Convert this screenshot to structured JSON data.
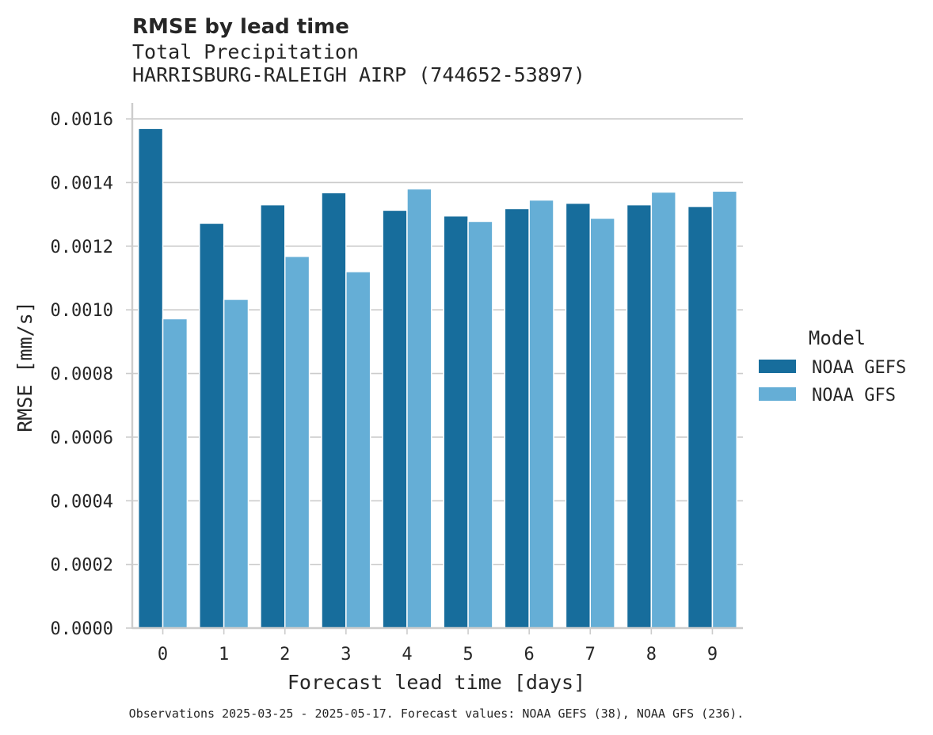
{
  "chart_data": {
    "type": "bar",
    "title": "RMSE by lead time",
    "subtitle_lines": [
      "Total Precipitation",
      "HARRISBURG-RALEIGH AIRP (744652-53897)"
    ],
    "xlabel": "Forecast lead time [days]",
    "ylabel": "RMSE [mm/s]",
    "categories": [
      "0",
      "1",
      "2",
      "3",
      "4",
      "5",
      "6",
      "7",
      "8",
      "9"
    ],
    "ylim": [
      0,
      0.00165
    ],
    "yticks": [
      0.0,
      0.0002,
      0.0004,
      0.0006,
      0.0008,
      0.001,
      0.0012,
      0.0014,
      0.0016
    ],
    "ytick_labels": [
      "0.0000",
      "0.0002",
      "0.0004",
      "0.0006",
      "0.0008",
      "0.0010",
      "0.0012",
      "0.0014",
      "0.0016"
    ],
    "grid": true,
    "legend": {
      "title": "Model",
      "placement": "right-outside"
    },
    "series": [
      {
        "name": "NOAA GEFS",
        "color": "#176d9c",
        "values": [
          0.00157,
          0.001272,
          0.00133,
          0.001368,
          0.001313,
          0.001295,
          0.001318,
          0.001335,
          0.00133,
          0.001325
        ]
      },
      {
        "name": "NOAA GFS",
        "color": "#65aed6",
        "values": [
          0.000972,
          0.001033,
          0.001168,
          0.00112,
          0.00138,
          0.001278,
          0.001345,
          0.001288,
          0.00137,
          0.001373
        ]
      }
    ],
    "footnote": "Observations 2025-03-25 - 2025-05-17. Forecast values: NOAA GEFS (38), NOAA GFS (236)."
  }
}
